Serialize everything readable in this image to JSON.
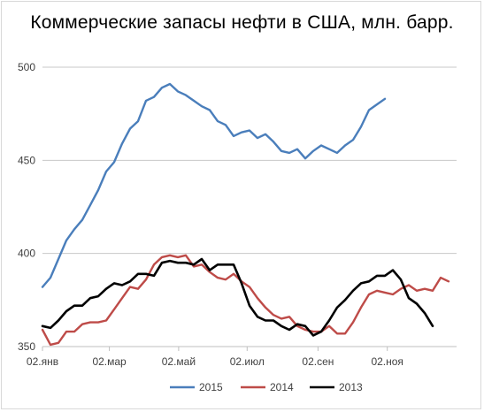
{
  "chart_data": {
    "type": "line",
    "title": "Коммерческие запасы нефти в США, млн. барр.",
    "xlabel": "",
    "ylabel": "",
    "ylim": [
      350,
      500
    ],
    "yticks": [
      350,
      400,
      450,
      500
    ],
    "xlim": [
      0,
      52
    ],
    "xticks": [
      {
        "x": 0,
        "label": "02.янв"
      },
      {
        "x": 8.4,
        "label": "02.мар"
      },
      {
        "x": 17.1,
        "label": "02.май"
      },
      {
        "x": 25.7,
        "label": "02.июл"
      },
      {
        "x": 34.6,
        "label": "02.сен"
      },
      {
        "x": 43.3,
        "label": "02.ноя"
      }
    ],
    "grid": true,
    "legend": "bottom",
    "series": [
      {
        "name": "2015",
        "color": "#4a7ebb",
        "values": [
          382.0,
          387.0,
          397.0,
          407.0,
          413.0,
          418.0,
          426.0,
          434.0,
          444.0,
          449.0,
          459.0,
          467.0,
          471.0,
          482.0,
          484.0,
          489.0,
          491.0,
          487.0,
          485.0,
          482.0,
          479.0,
          477.0,
          471.0,
          469.0,
          463.0,
          465.0,
          466.0,
          462.0,
          464.0,
          460.0,
          455.0,
          454.0,
          456.0,
          451.0,
          455.0,
          458.0,
          456.0,
          454.0,
          458.0,
          461.0,
          468.0,
          477.0,
          480.0,
          483.0
        ]
      },
      {
        "name": "2014",
        "color": "#be4b48",
        "values": [
          359.0,
          351.0,
          352.0,
          358.0,
          358.0,
          362.0,
          363.0,
          363.0,
          364.0,
          370.0,
          376.0,
          382.0,
          381.0,
          386.0,
          394.0,
          398.0,
          399.0,
          398.0,
          399.0,
          393.0,
          394.0,
          390.0,
          387.0,
          386.0,
          389.0,
          385.0,
          382.0,
          376.0,
          371.0,
          367.0,
          365.0,
          366.0,
          361.0,
          359.0,
          358.0,
          358.0,
          361.0,
          357.0,
          357.0,
          363.0,
          371.0,
          378.0,
          380.0,
          379.0,
          378.0,
          381.0,
          383.0,
          380.0,
          381.0,
          380.0,
          387.0,
          385.0
        ]
      },
      {
        "name": "2013",
        "color": "#000000",
        "values": [
          361.0,
          360.0,
          364.0,
          369.0,
          372.0,
          372.0,
          376.0,
          377.0,
          381.0,
          384.0,
          383.0,
          385.0,
          389.0,
          389.0,
          388.0,
          395.0,
          396.0,
          395.0,
          395.0,
          394.0,
          397.0,
          391.0,
          394.0,
          394.0,
          394.0,
          384.0,
          372.0,
          366.0,
          364.0,
          364.0,
          361.0,
          359.0,
          362.0,
          361.0,
          356.0,
          358.0,
          364.0,
          371.0,
          375.0,
          380.0,
          384.0,
          385.0,
          388.0,
          388.0,
          391.0,
          386.0,
          376.0,
          373.0,
          368.0,
          361.0
        ]
      }
    ]
  }
}
